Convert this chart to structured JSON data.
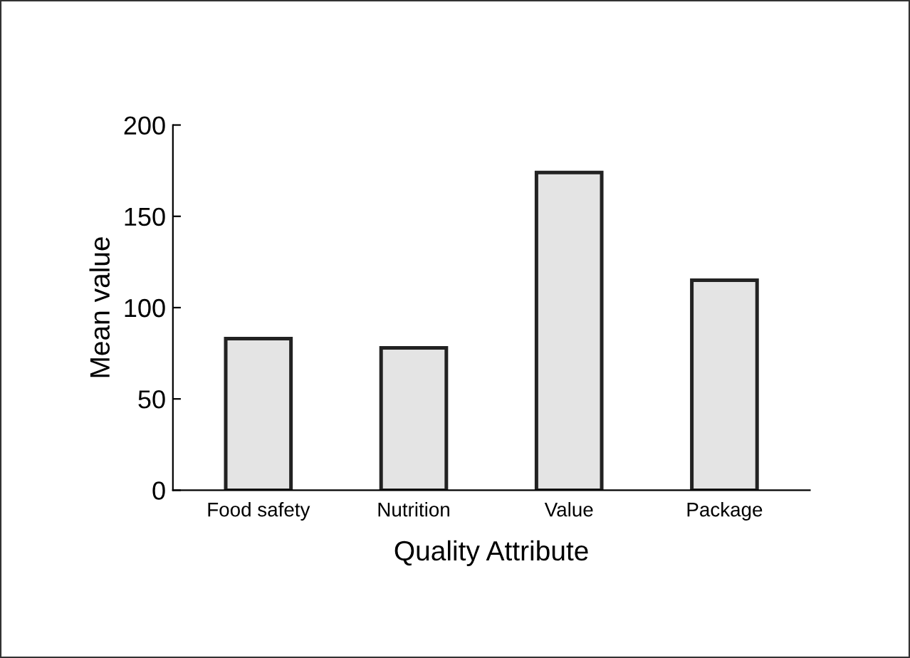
{
  "chart_data": {
    "type": "bar",
    "xlabel": "Quality Attribute",
    "ylabel": "Mean value",
    "categories": [
      "Food safety",
      "Nutrition",
      "Value",
      "Package"
    ],
    "values": [
      83,
      78,
      174,
      115
    ],
    "color": "#e4e4e4",
    "ylim": [
      0,
      200
    ],
    "yticks": [
      0,
      50,
      100,
      150,
      200
    ],
    "grid": false
  }
}
